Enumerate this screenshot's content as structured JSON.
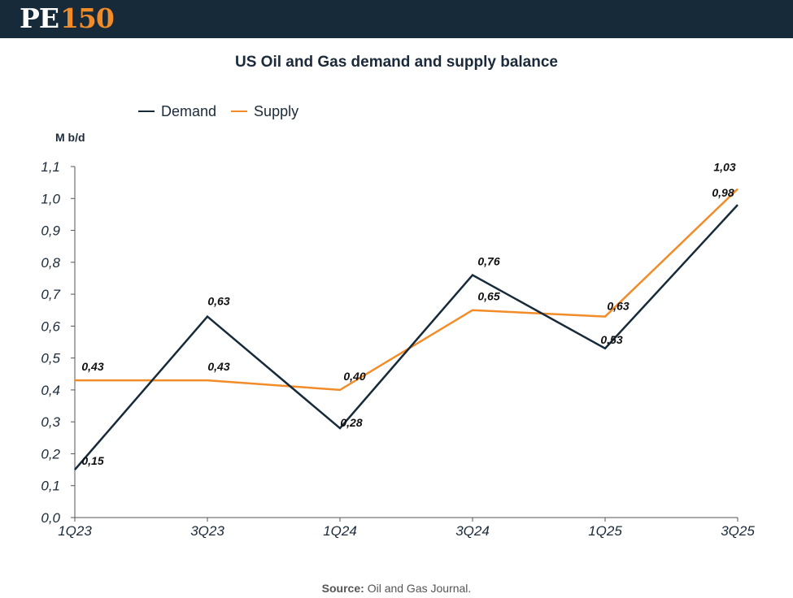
{
  "brand": {
    "logo_left": "PE",
    "logo_right": "150"
  },
  "colors": {
    "header_bg": "#172a3a",
    "accent": "#f28c28",
    "demand": "#172a3a",
    "supply": "#f28c28"
  },
  "chart_data": {
    "type": "line",
    "title": "US Oil and Gas demand and supply balance",
    "ylabel": "M b/d",
    "xlabel": "",
    "ylim": [
      0,
      1.1
    ],
    "yticks": [
      "0,0",
      "0,1",
      "0,2",
      "0,3",
      "0,4",
      "0,5",
      "0,6",
      "0,7",
      "0,8",
      "0,9",
      "1,0",
      "1,1"
    ],
    "x_tick_labels": [
      "1Q23",
      "3Q23",
      "1Q24",
      "3Q24",
      "1Q25",
      "3Q25"
    ],
    "legend_position": "top-left",
    "series": [
      {
        "name": "Demand",
        "color": "#172a3a",
        "values": [
          0.15,
          0.63,
          0.28,
          0.76,
          0.53,
          0.98
        ],
        "labels": [
          "0,15",
          "0,63",
          "0,28",
          "0,76",
          "0,53",
          "0,98"
        ]
      },
      {
        "name": "Supply",
        "color": "#f28c28",
        "values": [
          0.43,
          0.43,
          0.4,
          0.65,
          0.63,
          1.03
        ],
        "labels": [
          "0,43",
          "0,43",
          "0,40",
          "0,65",
          "0,63",
          "1,03"
        ]
      }
    ]
  },
  "source": {
    "key": "Source:",
    "text": "Oil and Gas Journal."
  }
}
